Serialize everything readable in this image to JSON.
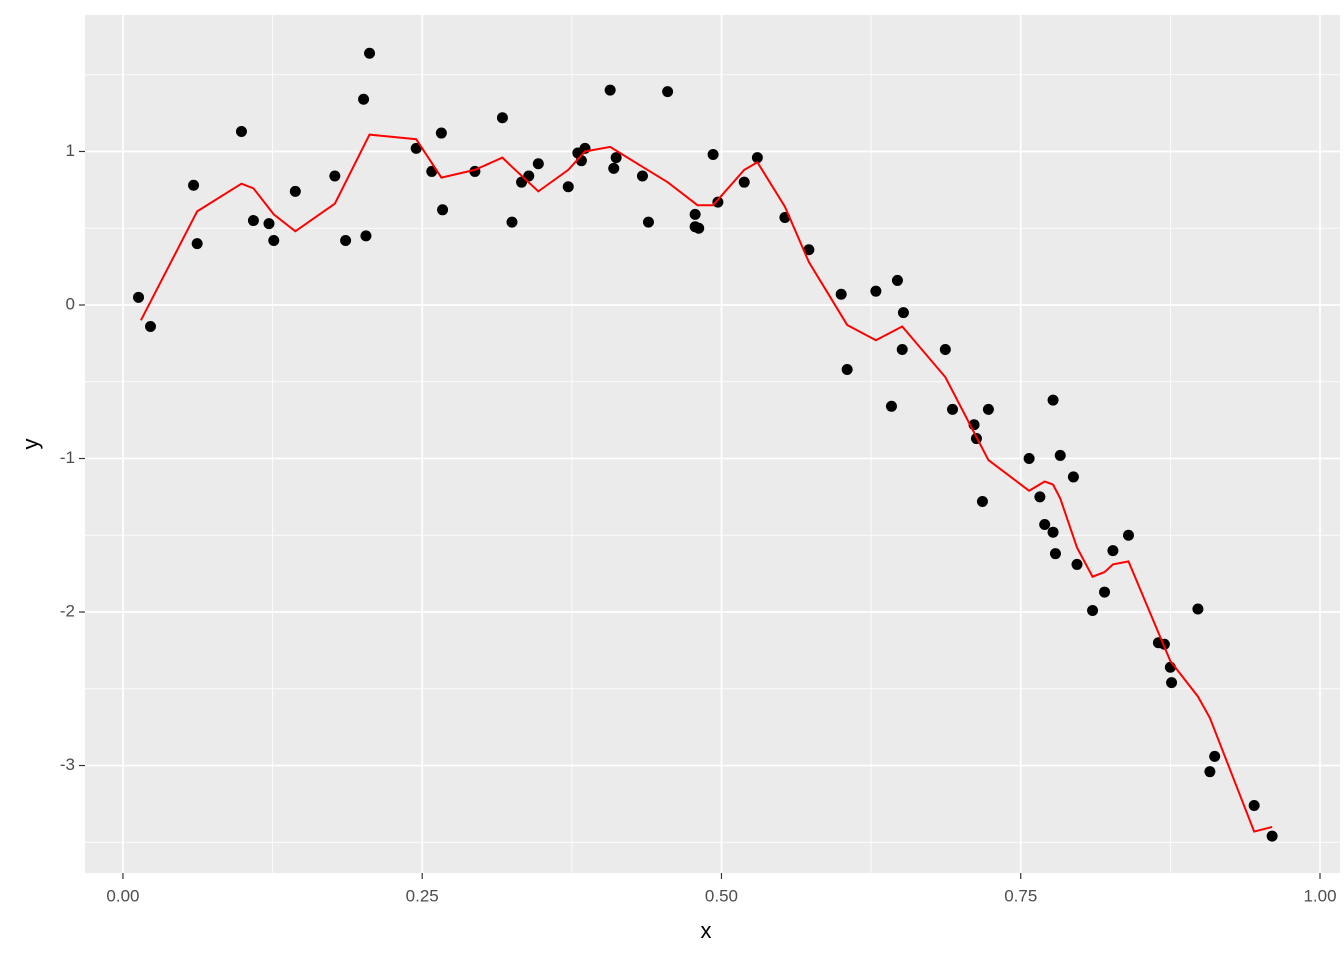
{
  "chart_data": {
    "type": "scatter",
    "x_label": "x",
    "y_label": "y",
    "xlim": [
      -0.0317,
      1.0167
    ],
    "ylim": [
      -3.7,
      1.889
    ],
    "xticks": [
      {
        "value": 0,
        "label": "0.00"
      },
      {
        "value": 0.25,
        "label": "0.25"
      },
      {
        "value": 0.5,
        "label": "0.50"
      },
      {
        "value": 0.75,
        "label": "0.75"
      },
      {
        "value": 1,
        "label": "1.00"
      }
    ],
    "yticks": [
      -3,
      -2,
      -1,
      0,
      1
    ],
    "grid": true,
    "series": [
      {
        "type": "scatter",
        "color": "#000000",
        "x": [
          0.013,
          0.023,
          0.059,
          0.062,
          0.099,
          0.109,
          0.122,
          0.126,
          0.144,
          0.177,
          0.186,
          0.201,
          0.203,
          0.206,
          0.245,
          0.258,
          0.266,
          0.267,
          0.294,
          0.317,
          0.325,
          0.333,
          0.339,
          0.347,
          0.372,
          0.38,
          0.383,
          0.386,
          0.407,
          0.41,
          0.412,
          0.434,
          0.439,
          0.455,
          0.478,
          0.478,
          0.481,
          0.493,
          0.497,
          0.519,
          0.53,
          0.553,
          0.573,
          0.6,
          0.605,
          0.629,
          0.642,
          0.647,
          0.652,
          0.651,
          0.687,
          0.693,
          0.711,
          0.713,
          0.718,
          0.723,
          0.757,
          0.766,
          0.77,
          0.777,
          0.777,
          0.779,
          0.783,
          0.794,
          0.797,
          0.81,
          0.82,
          0.827,
          0.84,
          0.865,
          0.87,
          0.875,
          0.876,
          0.898,
          0.908,
          0.912,
          0.945,
          0.96
        ],
        "values": [
          0.05,
          -0.14,
          0.78,
          0.4,
          1.13,
          0.55,
          0.53,
          0.42,
          0.74,
          0.84,
          0.42,
          1.34,
          0.45,
          1.64,
          1.02,
          0.87,
          1.12,
          0.62,
          0.87,
          1.22,
          0.54,
          0.8,
          0.84,
          0.92,
          0.77,
          0.99,
          0.94,
          1.02,
          1.4,
          0.89,
          0.96,
          0.84,
          0.54,
          1.39,
          0.59,
          0.51,
          0.5,
          0.98,
          0.67,
          0.8,
          0.96,
          0.57,
          0.36,
          0.07,
          -0.42,
          0.09,
          -0.66,
          0.16,
          -0.05,
          -0.29,
          -0.29,
          -0.68,
          -0.78,
          -0.87,
          -1.28,
          -0.68,
          -1.0,
          -1.25,
          -1.43,
          -0.62,
          -1.48,
          -1.62,
          -0.98,
          -1.12,
          -1.69,
          -1.99,
          -1.87,
          -1.6,
          -1.5,
          -2.2,
          -2.21,
          -2.36,
          -2.46,
          -1.98,
          -3.04,
          -2.94,
          -3.26,
          -3.46
        ]
      },
      {
        "type": "line",
        "color": "#ff0000",
        "x": [
          0.015,
          0.062,
          0.099,
          0.109,
          0.126,
          0.144,
          0.177,
          0.206,
          0.245,
          0.266,
          0.294,
          0.317,
          0.325,
          0.347,
          0.372,
          0.386,
          0.407,
          0.434,
          0.455,
          0.48,
          0.493,
          0.519,
          0.53,
          0.553,
          0.573,
          0.605,
          0.629,
          0.651,
          0.687,
          0.723,
          0.757,
          0.77,
          0.777,
          0.783,
          0.797,
          0.81,
          0.82,
          0.827,
          0.84,
          0.875,
          0.898,
          0.908,
          0.945,
          0.96
        ],
        "values": [
          -0.1,
          0.61,
          0.79,
          0.76,
          0.59,
          0.48,
          0.66,
          1.11,
          1.08,
          0.83,
          0.88,
          0.96,
          0.9,
          0.74,
          0.88,
          1.0,
          1.03,
          0.9,
          0.8,
          0.65,
          0.65,
          0.88,
          0.93,
          0.64,
          0.28,
          -0.13,
          -0.23,
          -0.14,
          -0.47,
          -1.01,
          -1.21,
          -1.15,
          -1.17,
          -1.26,
          -1.58,
          -1.77,
          -1.74,
          -1.69,
          -1.67,
          -2.32,
          -2.55,
          -2.69,
          -3.43,
          -3.4
        ]
      }
    ]
  }
}
